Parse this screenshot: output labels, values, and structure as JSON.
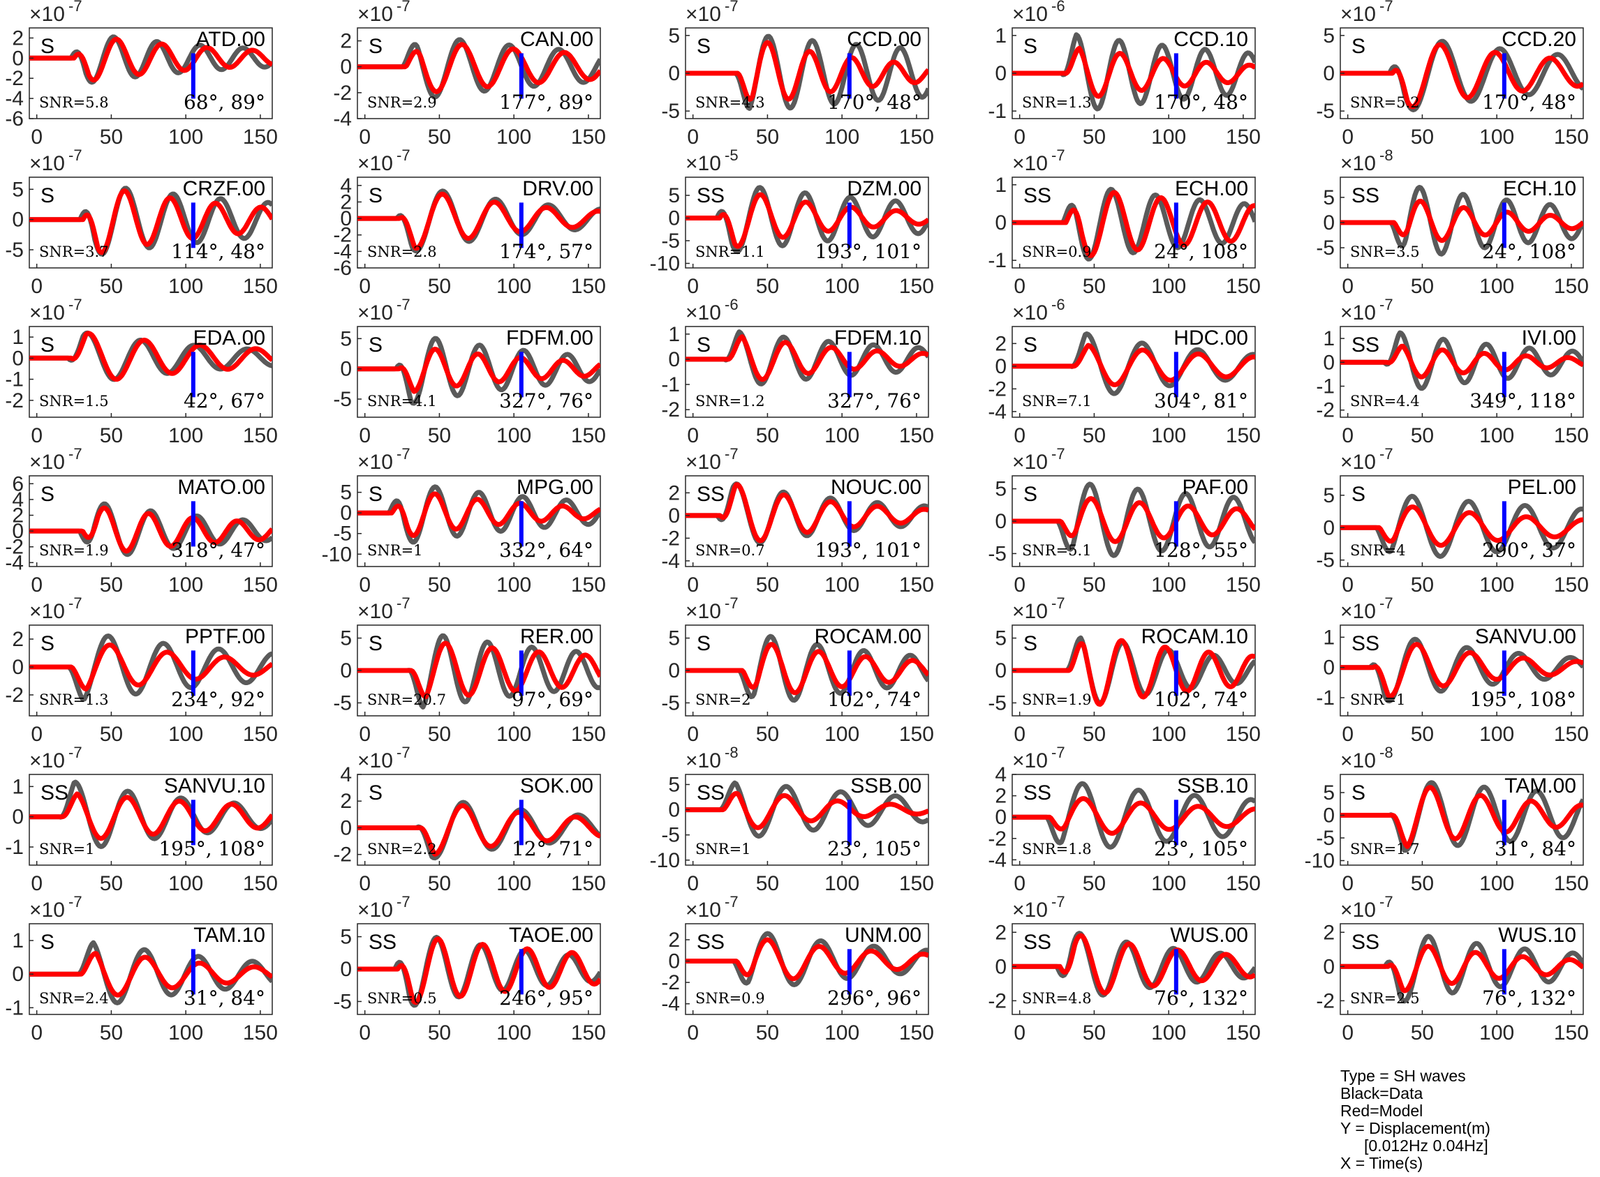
{
  "legend": {
    "type": "Type = SH waves",
    "black": "Black=Data",
    "red": "Red=Model",
    "y": "Y = Displacement(m)",
    "band": "[0.012Hz 0.04Hz]",
    "x": "X = Time(s)"
  },
  "colors": {
    "data": "#5a5a5a",
    "model": "#ff0000",
    "marker": "#0000ff"
  },
  "chart_data": [
    {
      "type": "line",
      "station": "ATD.00",
      "phase": "S",
      "snr": "SNR=5.8",
      "angles": "68°, 89°",
      "exponent": "-7",
      "yticks": [
        -6,
        -4,
        -2,
        0,
        2
      ],
      "ylim": [
        -6,
        3
      ],
      "xticks": [
        0,
        50,
        100,
        150
      ],
      "xlim": [
        -5,
        158
      ]
    },
    {
      "type": "line",
      "station": "CAN.00",
      "phase": "S",
      "snr": "SNR=2.9",
      "angles": "177°, 89°",
      "exponent": "-7",
      "yticks": [
        -4,
        -2,
        0,
        2
      ],
      "ylim": [
        -4,
        3
      ],
      "xticks": [
        0,
        50,
        100,
        150
      ],
      "xlim": [
        -5,
        158
      ]
    },
    {
      "type": "line",
      "station": "CCD.00",
      "phase": "S",
      "snr": "SNR=4.3",
      "angles": "170°, 48°",
      "exponent": "-7",
      "yticks": [
        -5,
        0,
        5
      ],
      "ylim": [
        -6,
        6
      ],
      "xticks": [
        0,
        50,
        100,
        150
      ],
      "xlim": [
        -5,
        158
      ]
    },
    {
      "type": "line",
      "station": "CCD.10",
      "phase": "S",
      "snr": "SNR=1.3",
      "angles": "170°, 48°",
      "exponent": "-6",
      "yticks": [
        -1,
        0,
        1
      ],
      "ylim": [
        -1.2,
        1.2
      ],
      "xticks": [
        0,
        50,
        100,
        150
      ],
      "xlim": [
        -5,
        158
      ]
    },
    {
      "type": "line",
      "station": "CCD.20",
      "phase": "S",
      "snr": "SNR=5.2",
      "angles": "170°, 48°",
      "exponent": "-7",
      "yticks": [
        -5,
        0,
        5
      ],
      "ylim": [
        -6,
        6
      ],
      "xticks": [
        0,
        50,
        100,
        150
      ],
      "xlim": [
        -5,
        158
      ]
    },
    {
      "type": "line",
      "station": "CRZF.00",
      "phase": "S",
      "snr": "SNR=3.7",
      "angles": "114°, 48°",
      "exponent": "-7",
      "yticks": [
        -5,
        0,
        5
      ],
      "ylim": [
        -8,
        7
      ],
      "xticks": [
        0,
        50,
        100,
        150
      ],
      "xlim": [
        -5,
        158
      ]
    },
    {
      "type": "line",
      "station": "DRV.00",
      "phase": "S",
      "snr": "SNR=2.8",
      "angles": "174°, 57°",
      "exponent": "-7",
      "yticks": [
        -6,
        -4,
        -2,
        0,
        2,
        4
      ],
      "ylim": [
        -6,
        5
      ],
      "xticks": [
        0,
        50,
        100,
        150
      ],
      "xlim": [
        -5,
        158
      ]
    },
    {
      "type": "line",
      "station": "DZM.00",
      "phase": "SS",
      "snr": "SNR=1.1",
      "angles": "193°, 101°",
      "exponent": "-5",
      "yticks": [
        -10,
        -5,
        0,
        5
      ],
      "ylim": [
        -11,
        9
      ],
      "xticks": [
        0,
        50,
        100,
        150
      ],
      "xlim": [
        -5,
        158
      ]
    },
    {
      "type": "line",
      "station": "ECH.00",
      "phase": "SS",
      "snr": "SNR=0.9",
      "angles": "24°, 108°",
      "exponent": "-7",
      "yticks": [
        -1,
        0,
        1
      ],
      "ylim": [
        -1.2,
        1.2
      ],
      "xticks": [
        0,
        50,
        100,
        150
      ],
      "xlim": [
        -5,
        158
      ]
    },
    {
      "type": "line",
      "station": "ECH.10",
      "phase": "SS",
      "snr": "SNR=3.5",
      "angles": "24°, 108°",
      "exponent": "-8",
      "yticks": [
        -5,
        0,
        5
      ],
      "ylim": [
        -9,
        9
      ],
      "xticks": [
        0,
        50,
        100,
        150
      ],
      "xlim": [
        -5,
        158
      ]
    },
    {
      "type": "line",
      "station": "EDA.00",
      "phase": "S",
      "snr": "SNR=1.5",
      "angles": "42°, 67°",
      "exponent": "-7",
      "yticks": [
        -2,
        -1,
        0,
        1
      ],
      "ylim": [
        -2.8,
        1.5
      ],
      "xticks": [
        0,
        50,
        100,
        150
      ],
      "xlim": [
        -5,
        158
      ]
    },
    {
      "type": "line",
      "station": "FDFM.00",
      "phase": "S",
      "snr": "SNR=4.1",
      "angles": "327°, 76°",
      "exponent": "-7",
      "yticks": [
        -5,
        0,
        5
      ],
      "ylim": [
        -8,
        7
      ],
      "xticks": [
        0,
        50,
        100,
        150
      ],
      "xlim": [
        -5,
        158
      ]
    },
    {
      "type": "line",
      "station": "FDFM.10",
      "phase": "S",
      "snr": "SNR=1.2",
      "angles": "327°, 76°",
      "exponent": "-6",
      "yticks": [
        -2,
        -1,
        0,
        1
      ],
      "ylim": [
        -2.3,
        1.3
      ],
      "xticks": [
        0,
        50,
        100,
        150
      ],
      "xlim": [
        -5,
        158
      ]
    },
    {
      "type": "line",
      "station": "HDC.00",
      "phase": "S",
      "snr": "SNR=7.1",
      "angles": "304°, 81°",
      "exponent": "-6",
      "yticks": [
        -4,
        -2,
        0,
        2
      ],
      "ylim": [
        -4.5,
        3.5
      ],
      "xticks": [
        0,
        50,
        100,
        150
      ],
      "xlim": [
        -5,
        158
      ]
    },
    {
      "type": "line",
      "station": "IVI.00",
      "phase": "SS",
      "snr": "SNR=4.4",
      "angles": "349°, 118°",
      "exponent": "-7",
      "yticks": [
        -2,
        -1,
        0,
        1
      ],
      "ylim": [
        -2.3,
        1.5
      ],
      "xticks": [
        0,
        50,
        100,
        150
      ],
      "xlim": [
        -5,
        158
      ]
    },
    {
      "type": "line",
      "station": "MATO.00",
      "phase": "S",
      "snr": "SNR=1.9",
      "angles": "318°, 47°",
      "exponent": "-7",
      "yticks": [
        -4,
        -2,
        0,
        2,
        4,
        6
      ],
      "ylim": [
        -4.5,
        7
      ],
      "xticks": [
        0,
        50,
        100,
        150
      ],
      "xlim": [
        -5,
        158
      ]
    },
    {
      "type": "line",
      "station": "MPG.00",
      "phase": "S",
      "snr": "SNR=1",
      "angles": "332°, 64°",
      "exponent": "-7",
      "yticks": [
        -10,
        -5,
        0,
        5
      ],
      "ylim": [
        -13,
        9
      ],
      "xticks": [
        0,
        50,
        100,
        150
      ],
      "xlim": [
        -5,
        158
      ]
    },
    {
      "type": "line",
      "station": "NOUC.00",
      "phase": "SS",
      "snr": "SNR=0.7",
      "angles": "193°, 101°",
      "exponent": "-7",
      "yticks": [
        -4,
        -2,
        0,
        2
      ],
      "ylim": [
        -4.5,
        3.5
      ],
      "xticks": [
        0,
        50,
        100,
        150
      ],
      "xlim": [
        -5,
        158
      ]
    },
    {
      "type": "line",
      "station": "PAF.00",
      "phase": "S",
      "snr": "SNR=5.1",
      "angles": "128°, 55°",
      "exponent": "-7",
      "yticks": [
        -5,
        0,
        5
      ],
      "ylim": [
        -7,
        7
      ],
      "xticks": [
        0,
        50,
        100,
        150
      ],
      "xlim": [
        -5,
        158
      ]
    },
    {
      "type": "line",
      "station": "PEL.00",
      "phase": "S",
      "snr": "SNR=4",
      "angles": "290°, 37°",
      "exponent": "-7",
      "yticks": [
        -5,
        0,
        5
      ],
      "ylim": [
        -6,
        8
      ],
      "xticks": [
        0,
        50,
        100,
        150
      ],
      "xlim": [
        -5,
        158
      ]
    },
    {
      "type": "line",
      "station": "PPTF.00",
      "phase": "S",
      "snr": "SNR=1.3",
      "angles": "234°, 92°",
      "exponent": "-7",
      "yticks": [
        -2,
        0,
        2
      ],
      "ylim": [
        -3.5,
        3
      ],
      "xticks": [
        0,
        50,
        100,
        150
      ],
      "xlim": [
        -5,
        158
      ]
    },
    {
      "type": "line",
      "station": "RER.00",
      "phase": "S",
      "snr": "SNR=20.7",
      "angles": "97°, 69°",
      "exponent": "-7",
      "yticks": [
        -5,
        0,
        5
      ],
      "ylim": [
        -7,
        7
      ],
      "xticks": [
        0,
        50,
        100,
        150
      ],
      "xlim": [
        -5,
        158
      ]
    },
    {
      "type": "line",
      "station": "ROCAM.00",
      "phase": "S",
      "snr": "SNR=2",
      "angles": "102°, 74°",
      "exponent": "-7",
      "yticks": [
        -5,
        0,
        5
      ],
      "ylim": [
        -7,
        7
      ],
      "xticks": [
        0,
        50,
        100,
        150
      ],
      "xlim": [
        -5,
        158
      ]
    },
    {
      "type": "line",
      "station": "ROCAM.10",
      "phase": "S",
      "snr": "SNR=1.9",
      "angles": "102°, 74°",
      "exponent": "-7",
      "yticks": [
        -5,
        0,
        5
      ],
      "ylim": [
        -7,
        7
      ],
      "xticks": [
        0,
        50,
        100,
        150
      ],
      "xlim": [
        -5,
        158
      ]
    },
    {
      "type": "line",
      "station": "SANVU.00",
      "phase": "SS",
      "snr": "SNR=1",
      "angles": "195°, 108°",
      "exponent": "-7",
      "yticks": [
        -1,
        0,
        1
      ],
      "ylim": [
        -1.6,
        1.4
      ],
      "xticks": [
        0,
        50,
        100,
        150
      ],
      "xlim": [
        -5,
        158
      ]
    },
    {
      "type": "line",
      "station": "SANVU.10",
      "phase": "SS",
      "snr": "SNR=1",
      "angles": "195°, 108°",
      "exponent": "-7",
      "yticks": [
        -1,
        0,
        1
      ],
      "ylim": [
        -1.6,
        1.4
      ],
      "xticks": [
        0,
        50,
        100,
        150
      ],
      "xlim": [
        -5,
        158
      ]
    },
    {
      "type": "line",
      "station": "SOK.00",
      "phase": "S",
      "snr": "SNR=2.2",
      "angles": "12°, 71°",
      "exponent": "-7",
      "yticks": [
        -2,
        0,
        2,
        4
      ],
      "ylim": [
        -2.8,
        4
      ],
      "xticks": [
        0,
        50,
        100,
        150
      ],
      "xlim": [
        -5,
        158
      ]
    },
    {
      "type": "line",
      "station": "SSB.00",
      "phase": "SS",
      "snr": "SNR=1",
      "angles": "23°, 105°",
      "exponent": "-8",
      "yticks": [
        -10,
        -5,
        0,
        5
      ],
      "ylim": [
        -11,
        7
      ],
      "xticks": [
        0,
        50,
        100,
        150
      ],
      "xlim": [
        -5,
        158
      ]
    },
    {
      "type": "line",
      "station": "SSB.10",
      "phase": "SS",
      "snr": "SNR=1.8",
      "angles": "23°, 105°",
      "exponent": "-7",
      "yticks": [
        -4,
        -2,
        0,
        2,
        4
      ],
      "ylim": [
        -4.5,
        4
      ],
      "xticks": [
        0,
        50,
        100,
        150
      ],
      "xlim": [
        -5,
        158
      ]
    },
    {
      "type": "line",
      "station": "TAM.00",
      "phase": "S",
      "snr": "SNR=1.7",
      "angles": "31°, 84°",
      "exponent": "-8",
      "yticks": [
        -10,
        -5,
        0,
        5
      ],
      "ylim": [
        -11,
        9
      ],
      "xticks": [
        0,
        50,
        100,
        150
      ],
      "xlim": [
        -5,
        158
      ]
    },
    {
      "type": "line",
      "station": "TAM.10",
      "phase": "S",
      "snr": "SNR=2.4",
      "angles": "31°, 84°",
      "exponent": "-7",
      "yticks": [
        -1,
        0,
        1
      ],
      "ylim": [
        -1.2,
        1.5
      ],
      "xticks": [
        0,
        50,
        100,
        150
      ],
      "xlim": [
        -5,
        158
      ]
    },
    {
      "type": "line",
      "station": "TAOE.00",
      "phase": "SS",
      "snr": "SNR=0.5",
      "angles": "246°, 95°",
      "exponent": "-7",
      "yticks": [
        -5,
        0,
        5
      ],
      "ylim": [
        -7,
        7
      ],
      "xticks": [
        0,
        50,
        100,
        150
      ],
      "xlim": [
        -5,
        158
      ]
    },
    {
      "type": "line",
      "station": "UNM.00",
      "phase": "SS",
      "snr": "SNR=0.9",
      "angles": "296°, 96°",
      "exponent": "-7",
      "yticks": [
        -4,
        -2,
        0,
        2
      ],
      "ylim": [
        -5,
        3.5
      ],
      "xticks": [
        0,
        50,
        100,
        150
      ],
      "xlim": [
        -5,
        158
      ]
    },
    {
      "type": "line",
      "station": "WUS.00",
      "phase": "SS",
      "snr": "SNR=4.8",
      "angles": "76°, 132°",
      "exponent": "-7",
      "yticks": [
        -2,
        0,
        2
      ],
      "ylim": [
        -2.8,
        2.5
      ],
      "xticks": [
        0,
        50,
        100,
        150
      ],
      "xlim": [
        -5,
        158
      ]
    },
    {
      "type": "line",
      "station": "WUS.10",
      "phase": "SS",
      "snr": "SNR=2.5",
      "angles": "76°, 132°",
      "exponent": "-7",
      "yticks": [
        -2,
        0,
        2
      ],
      "ylim": [
        -2.8,
        2.5
      ],
      "xticks": [
        0,
        50,
        100,
        150
      ],
      "xlim": [
        -5,
        158
      ]
    }
  ]
}
